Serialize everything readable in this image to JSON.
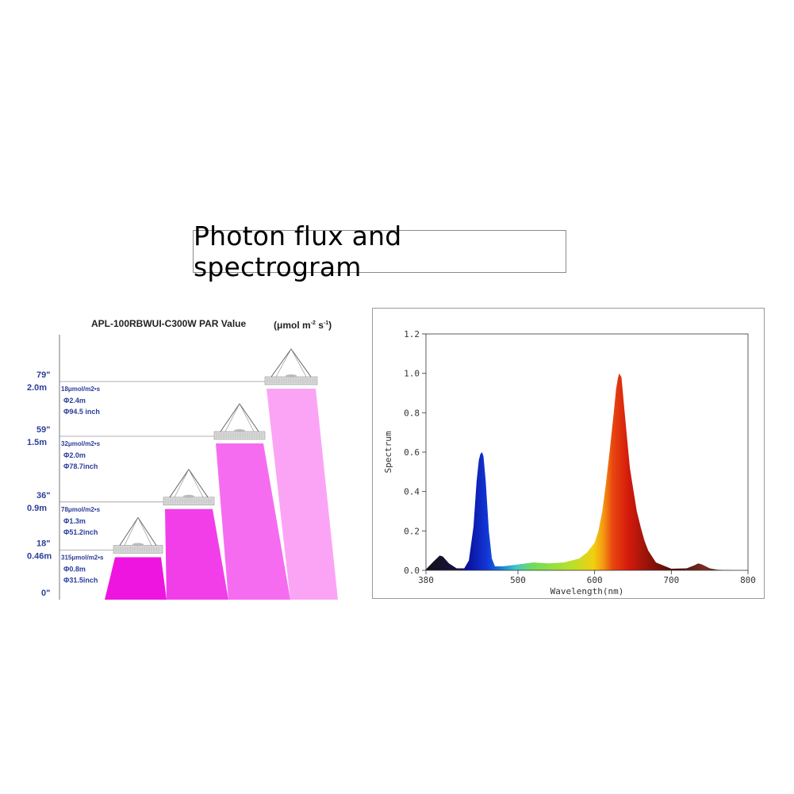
{
  "page_title": "Photon flux and spectrogram",
  "chart_data": [
    {
      "type": "area",
      "title": "APL-100RBWUI-C300W  PAR Value",
      "unit_html": "(μmol m",
      "unit_sup1": "-2",
      "unit_mid": " s",
      "unit_sup2": "-1",
      "unit_close": ")",
      "zero_label": "0\"",
      "colors": [
        "#ee15e0",
        "#f23ee9",
        "#f66cf0",
        "#fba4f6"
      ],
      "levels": [
        {
          "inch_label": "18\"",
          "meter_label": "0.46m",
          "par": "315μmol/m2•s",
          "diameter_m": "Φ0.8m",
          "diameter_in": "Φ31.5inch",
          "height_m": 0.46
        },
        {
          "inch_label": "36\"",
          "meter_label": "0.9m",
          "par": "78μmol/m2•s",
          "diameter_m": "Φ1.3m",
          "diameter_in": "Φ51.2inch",
          "height_m": 0.9
        },
        {
          "inch_label": "59\"",
          "meter_label": "1.5m",
          "par": "32μmol/m2•s",
          "diameter_m": "Φ2.0m",
          "diameter_in": "Φ78.7inch",
          "height_m": 1.5
        },
        {
          "inch_label": "79\"",
          "meter_label": "2.0m",
          "par": "18μmol/m2•s",
          "diameter_m": "Φ2.4m",
          "diameter_in": "Φ94.5 inch",
          "height_m": 2.0
        }
      ]
    },
    {
      "type": "area",
      "xlabel": "Wavelength(nm)",
      "ylabel": "Spectrum",
      "xlim": [
        380,
        800
      ],
      "ylim": [
        0,
        1.2
      ],
      "xticks": [
        "380",
        "500",
        "600",
        "700",
        "800"
      ],
      "xtick_values": [
        380,
        500,
        600,
        700,
        800
      ],
      "yticks": [
        "0.0",
        "0.2",
        "0.4",
        "0.6",
        "0.8",
        "1.0",
        "1.2"
      ],
      "ytick_values": [
        0,
        0.2,
        0.4,
        0.6,
        0.8,
        1.0,
        1.2
      ],
      "x": [
        380,
        390,
        398,
        402,
        410,
        420,
        430,
        436,
        442,
        446,
        449,
        451,
        453,
        455,
        458,
        462,
        466,
        470,
        480,
        500,
        520,
        540,
        560,
        580,
        590,
        600,
        605,
        610,
        615,
        620,
        625,
        628,
        630,
        632,
        635,
        638,
        642,
        646,
        650,
        655,
        660,
        665,
        670,
        680,
        700,
        720,
        730,
        735,
        740,
        750,
        760,
        780,
        800
      ],
      "y": [
        0.005,
        0.045,
        0.075,
        0.07,
        0.035,
        0.01,
        0.01,
        0.05,
        0.22,
        0.45,
        0.56,
        0.59,
        0.6,
        0.58,
        0.45,
        0.2,
        0.06,
        0.02,
        0.02,
        0.03,
        0.04,
        0.035,
        0.04,
        0.06,
        0.09,
        0.14,
        0.2,
        0.3,
        0.45,
        0.62,
        0.8,
        0.92,
        0.97,
        1.0,
        0.98,
        0.85,
        0.68,
        0.52,
        0.42,
        0.3,
        0.22,
        0.15,
        0.1,
        0.04,
        0.008,
        0.01,
        0.025,
        0.035,
        0.03,
        0.01,
        0.003,
        0.0,
        0.0
      ]
    }
  ]
}
